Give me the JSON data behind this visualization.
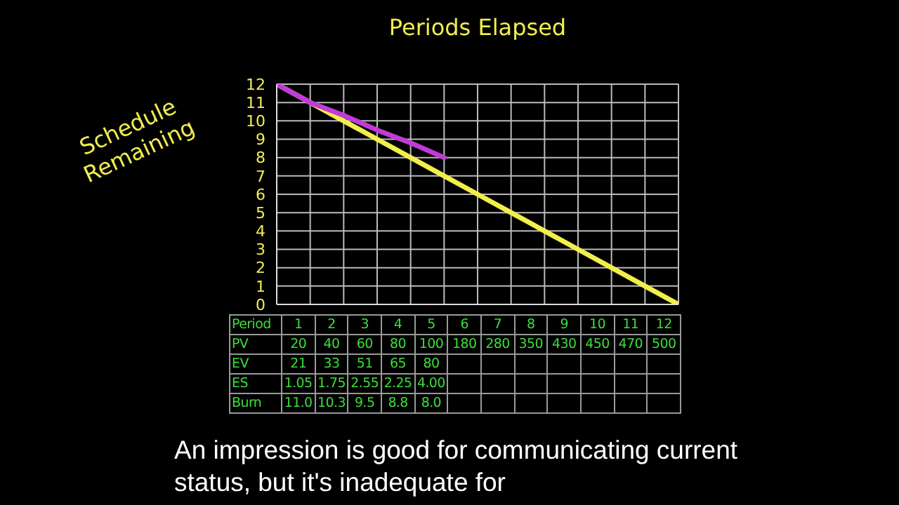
{
  "chart_data": {
    "type": "line",
    "xlabel": "Periods Elapsed",
    "ylabel": "Schedule Remaining",
    "categories": [
      null,
      null,
      null,
      null,
      null,
      null,
      null,
      null,
      null,
      null,
      null,
      null,
      null
    ],
    "series": [
      {
        "color": "#f2ee4c",
        "values": [
          12,
          11,
          10,
          9,
          8,
          7,
          6,
          5,
          4,
          3,
          2,
          1,
          0
        ]
      },
      {
        "color": "#c13bd6",
        "values": [
          12,
          11.0,
          10.3,
          9.5,
          8.8,
          8.0,
          null,
          null,
          null,
          null,
          null,
          null,
          null
        ]
      }
    ],
    "ylim": [
      0,
      12
    ],
    "yticks": [
      0,
      1,
      2,
      3,
      4,
      5,
      6,
      7,
      8,
      9,
      10,
      11,
      12
    ],
    "grid": true,
    "tick_labels": "y",
    "marker": "none",
    "line_style": "solid",
    "annotations": [
      "Period 1 2 3 4 5 6 7 8 9 10 11 12",
      "PV 20 40 60 80 100 180 280 350 430 450 470 500",
      "EV 21 33 51 65 80",
      "ES 1.05 1.75 2.55 2.25 4.00",
      "Burn 11.0 10.3 9.5 8.8 8.0",
      "An impression is good for communicating current status, but it's inadequate for"
    ]
  }
}
